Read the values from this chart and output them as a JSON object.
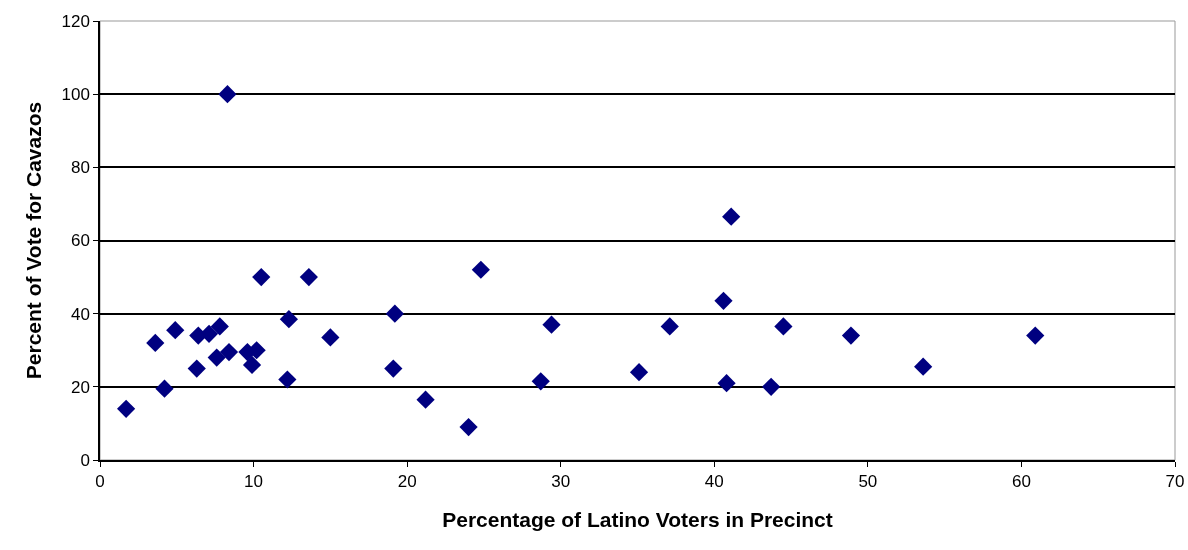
{
  "chart_data": {
    "type": "scatter",
    "xlabel": "Percentage of Latino Voters in Precinct",
    "ylabel": "Percent of Vote for Cavazos",
    "x": [
      1.7,
      3.6,
      4.2,
      4.9,
      6.3,
      6.4,
      7.1,
      7.6,
      7.8,
      8.3,
      8.4,
      9.6,
      9.9,
      10.2,
      10.5,
      12.2,
      12.3,
      13.6,
      15.0,
      19.1,
      19.2,
      21.2,
      24.0,
      24.8,
      28.7,
      29.4,
      35.1,
      37.1,
      40.6,
      40.8,
      41.1,
      43.7,
      44.5,
      48.9,
      53.6,
      60.9
    ],
    "series": [
      {
        "color": "#000080",
        "values": [
          14,
          32,
          19.5,
          35.5,
          25,
          34,
          34.5,
          28,
          36.5,
          100,
          29.5,
          29.5,
          26,
          30,
          50,
          22,
          38.5,
          50,
          33.5,
          25,
          40,
          16.5,
          9,
          52,
          21.5,
          37,
          24,
          36.5,
          43.5,
          21,
          66.5,
          20,
          36.5,
          34,
          25.5,
          34
        ]
      }
    ],
    "xlim": [
      0,
      70
    ],
    "xticks": [
      0,
      10,
      20,
      30,
      40,
      50,
      60,
      70
    ],
    "ylim": [
      0,
      120
    ],
    "yticks": [
      0,
      20,
      40,
      60,
      80,
      100,
      120
    ],
    "grid": "y",
    "marker": "diamond"
  }
}
